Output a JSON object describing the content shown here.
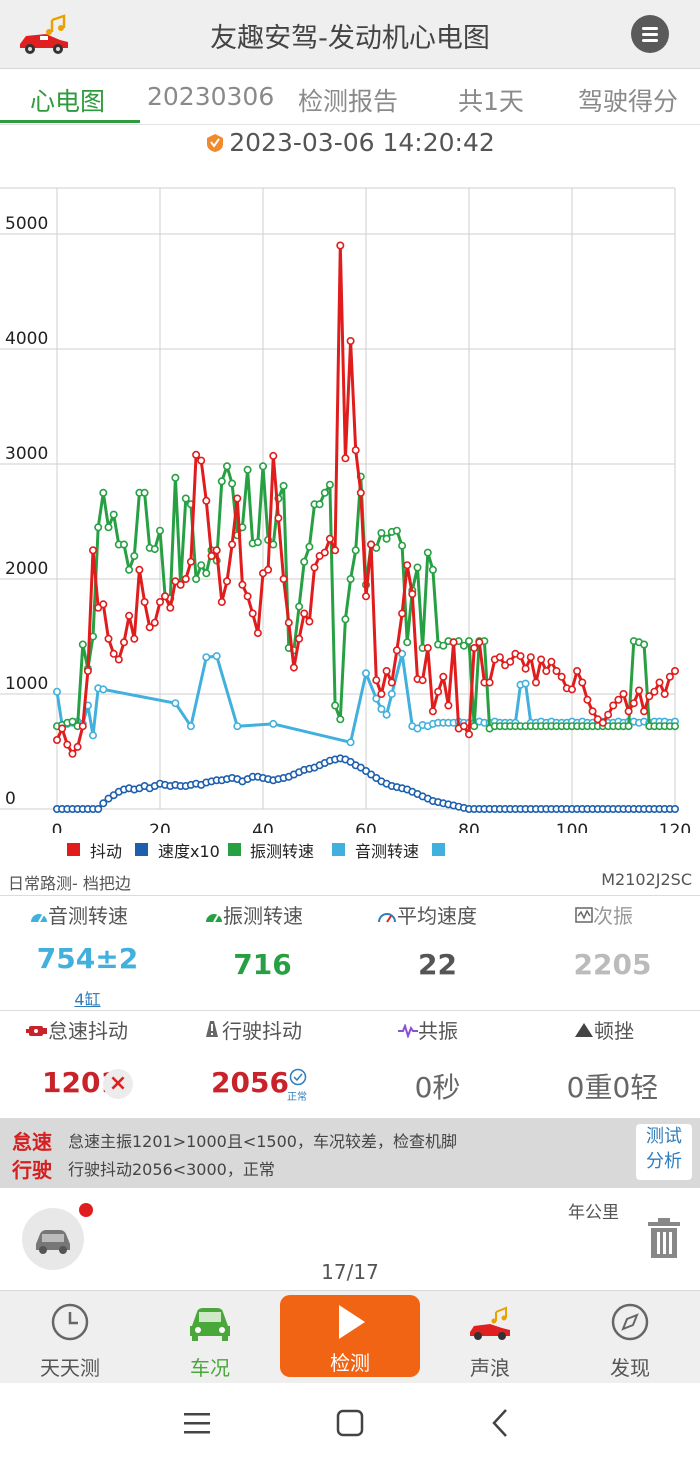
{
  "header": {
    "title": "友趣安驾-发动机心电图"
  },
  "tabs": [
    {
      "label": "心电图",
      "active": true
    },
    {
      "label": "20230306"
    },
    {
      "label": "检测报告"
    },
    {
      "label": "共1天"
    },
    {
      "label": "驾驶得分"
    }
  ],
  "datetime": "2023-03-06 14:20:42",
  "chart_data": {
    "type": "line",
    "x_ticks": [
      "0",
      "20",
      "40",
      "60",
      "80",
      "100",
      "120"
    ],
    "y_ticks": [
      "0",
      "1000",
      "2000",
      "3000",
      "4000",
      "5000"
    ],
    "xlim": [
      0,
      120
    ],
    "ylim": [
      0,
      5400
    ],
    "grid": true,
    "legend_position": "bottom-left",
    "legend": [
      "抖动",
      "速度x10",
      "振测转速",
      "音测转速",
      ""
    ],
    "series": [
      {
        "name": "抖动",
        "color": "#e01c1c",
        "x": [
          0,
          1,
          2,
          3,
          4,
          5,
          6,
          7,
          8,
          9,
          10,
          11,
          12,
          13,
          14,
          15,
          16,
          17,
          18,
          19,
          20,
          21,
          22,
          23,
          24,
          25,
          26,
          27,
          28,
          29,
          30,
          31,
          32,
          33,
          34,
          35,
          36,
          37,
          38,
          39,
          40,
          41,
          42,
          43,
          44,
          45,
          46,
          47,
          48,
          49,
          50,
          51,
          52,
          53,
          54,
          55,
          56,
          57,
          58,
          59,
          60,
          61,
          62,
          63,
          64,
          65,
          66,
          67,
          68,
          69,
          70,
          71,
          72,
          73,
          74,
          75,
          76,
          77,
          78,
          79,
          80,
          81,
          82,
          83,
          84,
          85,
          86,
          87,
          88,
          89,
          90,
          91,
          92,
          93,
          94,
          95,
          96,
          97,
          98,
          99,
          100,
          101,
          102,
          103,
          104,
          105,
          106,
          107,
          108,
          109,
          110,
          111,
          112,
          113,
          114,
          115,
          116,
          117,
          118,
          119,
          120
        ],
        "values": [
          600,
          700,
          560,
          480,
          540,
          720,
          1200,
          2250,
          1750,
          1780,
          1480,
          1350,
          1300,
          1450,
          1680,
          1480,
          2080,
          1800,
          1580,
          1620,
          1800,
          1850,
          1750,
          1980,
          1950,
          2000,
          2150,
          3080,
          3030,
          2680,
          2200,
          2250,
          1800,
          1980,
          2300,
          2700,
          1950,
          1850,
          1700,
          1530,
          2050,
          2080,
          3070,
          2530,
          2000,
          1620,
          1230,
          1480,
          1700,
          1630,
          2100,
          2200,
          2230,
          2350,
          2250,
          4900,
          3050,
          4070,
          3120,
          2750,
          1850,
          2300,
          1120,
          1000,
          1200,
          1100,
          1380,
          1700,
          2120,
          1870,
          1130,
          1120,
          1400,
          850,
          1020,
          1150,
          900,
          1450,
          700,
          720,
          650,
          1400,
          1450,
          1100,
          1100,
          1300,
          1320,
          1250,
          1280,
          1350,
          1330,
          1220,
          1320,
          1100,
          1300,
          1200,
          1280,
          1200,
          1150,
          1050,
          1040,
          1200,
          1100,
          950,
          850,
          780,
          750,
          820,
          900,
          950,
          1000,
          850,
          920,
          1030,
          850,
          980,
          1020,
          1100,
          1000,
          1150,
          1200
        ]
      },
      {
        "name": "速度x10",
        "color": "#1c5fae",
        "x": [
          0,
          1,
          2,
          3,
          4,
          5,
          6,
          7,
          8,
          9,
          10,
          11,
          12,
          13,
          14,
          15,
          16,
          17,
          18,
          19,
          20,
          21,
          22,
          23,
          24,
          25,
          26,
          27,
          28,
          29,
          30,
          31,
          32,
          33,
          34,
          35,
          36,
          37,
          38,
          39,
          40,
          41,
          42,
          43,
          44,
          45,
          46,
          47,
          48,
          49,
          50,
          51,
          52,
          53,
          54,
          55,
          56,
          57,
          58,
          59,
          60,
          61,
          62,
          63,
          64,
          65,
          66,
          67,
          68,
          69,
          70,
          71,
          72,
          73,
          74,
          75,
          76,
          77,
          78,
          79,
          80,
          81,
          82,
          83,
          84,
          85,
          86,
          87,
          88,
          89,
          90,
          91,
          92,
          93,
          94,
          95,
          96,
          97,
          98,
          99,
          100,
          101,
          102,
          103,
          104,
          105,
          106,
          107,
          108,
          109,
          110,
          111,
          112,
          113,
          114,
          115,
          116,
          117,
          118,
          119,
          120
        ],
        "values": [
          0,
          0,
          0,
          0,
          0,
          0,
          0,
          0,
          0,
          50,
          90,
          120,
          150,
          170,
          180,
          170,
          180,
          200,
          180,
          200,
          220,
          210,
          200,
          210,
          200,
          200,
          210,
          220,
          210,
          230,
          240,
          250,
          250,
          260,
          270,
          260,
          240,
          260,
          280,
          280,
          270,
          260,
          250,
          260,
          270,
          280,
          300,
          320,
          340,
          350,
          360,
          380,
          400,
          420,
          430,
          440,
          430,
          410,
          380,
          360,
          330,
          300,
          270,
          240,
          220,
          200,
          190,
          180,
          170,
          150,
          130,
          110,
          90,
          70,
          60,
          50,
          40,
          30,
          20,
          10,
          0,
          0,
          0,
          0,
          0,
          0,
          0,
          0,
          0,
          0,
          0,
          0,
          0,
          0,
          0,
          0,
          0,
          0,
          0,
          0,
          0,
          0,
          0,
          0,
          0,
          0,
          0,
          0,
          0,
          0,
          0,
          0,
          0,
          0,
          0,
          0,
          0,
          0,
          0,
          0,
          0
        ]
      },
      {
        "name": "振测转速",
        "color": "#27a043",
        "x": [
          0,
          1,
          2,
          3,
          4,
          5,
          6,
          7,
          8,
          9,
          10,
          11,
          12,
          13,
          14,
          15,
          16,
          17,
          18,
          19,
          20,
          21,
          22,
          23,
          24,
          25,
          26,
          27,
          28,
          29,
          30,
          31,
          32,
          33,
          34,
          35,
          36,
          37,
          38,
          39,
          40,
          41,
          42,
          43,
          44,
          45,
          46,
          47,
          48,
          49,
          50,
          51,
          52,
          53,
          54,
          55,
          56,
          57,
          58,
          59,
          60,
          61,
          62,
          63,
          64,
          65,
          66,
          67,
          68,
          69,
          70,
          71,
          72,
          73,
          74,
          75,
          76,
          77,
          78,
          79,
          80,
          81,
          82,
          83,
          84,
          85,
          86,
          87,
          88,
          89,
          90,
          91,
          92,
          93,
          94,
          95,
          96,
          97,
          98,
          99,
          100,
          101,
          102,
          103,
          104,
          105,
          106,
          107,
          108,
          109,
          110,
          111,
          112,
          113,
          114,
          115,
          116,
          117,
          118,
          119,
          120
        ],
        "values": [
          720,
          730,
          750,
          760,
          720,
          1430,
          1220,
          1500,
          2450,
          2750,
          2450,
          2560,
          2300,
          2300,
          2080,
          2200,
          2750,
          2750,
          2270,
          2260,
          2420,
          1850,
          1830,
          2880,
          1950,
          2700,
          2650,
          2000,
          2120,
          2050,
          2250,
          2160,
          2850,
          2980,
          2830,
          2380,
          2450,
          2950,
          2310,
          2320,
          2980,
          2340,
          2300,
          2700,
          2810,
          1400,
          1380,
          1760,
          2150,
          2280,
          2650,
          2650,
          2750,
          2820,
          900,
          780,
          1650,
          2000,
          2250,
          2890,
          1950,
          2300,
          2270,
          2400,
          2350,
          2410,
          2420,
          2290,
          1450,
          1900,
          2100,
          1400,
          2230,
          2080,
          1430,
          1420,
          1460,
          1450,
          1460,
          1420,
          1460,
          720,
          1460,
          1460,
          700,
          720,
          720,
          720,
          720,
          720,
          720,
          720,
          720,
          720,
          720,
          720,
          720,
          720,
          720,
          720,
          720,
          720,
          720,
          720,
          720,
          720,
          720,
          720,
          720,
          720,
          720,
          720,
          1460,
          1450,
          1430,
          720,
          720,
          720,
          720,
          720,
          720
        ]
      },
      {
        "name": "音测转速",
        "color": "#42b0dd",
        "x": [
          0,
          1,
          2,
          3,
          4,
          5,
          6,
          7,
          8,
          9,
          23,
          26,
          29,
          31,
          35,
          42,
          57,
          60,
          62,
          63,
          64,
          65,
          67,
          69,
          70,
          71,
          72,
          73,
          74,
          75,
          76,
          77,
          78,
          79,
          80,
          81,
          82,
          83,
          84,
          85,
          86,
          87,
          88,
          89,
          90,
          91,
          92,
          93,
          94,
          95,
          96,
          97,
          98,
          99,
          100,
          101,
          102,
          103,
          104,
          105,
          106,
          107,
          108,
          109,
          110,
          111,
          112,
          113,
          114,
          115,
          116,
          117,
          118,
          119,
          120
        ],
        "values": [
          1020,
          730,
          740,
          750,
          760,
          740,
          900,
          640,
          1050,
          1040,
          920,
          720,
          1320,
          1330,
          720,
          740,
          580,
          1180,
          960,
          870,
          820,
          1000,
          1350,
          720,
          700,
          730,
          720,
          740,
          750,
          750,
          750,
          750,
          760,
          750,
          750,
          750,
          760,
          750,
          750,
          760,
          750,
          750,
          750,
          750,
          1080,
          1090,
          750,
          750,
          760,
          750,
          760,
          750,
          750,
          750,
          760,
          750,
          760,
          750,
          750,
          760,
          760,
          750,
          750,
          760,
          750,
          760,
          760,
          750,
          760,
          750,
          760,
          760,
          760,
          750,
          760
        ]
      }
    ]
  },
  "chart_info": {
    "road_mode": "日常路测- 档把边",
    "model": "M2102J2SC"
  },
  "stats": {
    "row1": [
      {
        "label": "音测转速",
        "value": "754±2",
        "sub": "4缸",
        "icon": "gauge-icon",
        "color": "#42b0dd"
      },
      {
        "label": "振测转速",
        "value": "716",
        "icon": "gauge-icon",
        "color": "#27a043"
      },
      {
        "label": "平均速度",
        "value": "22",
        "icon": "speedometer-icon",
        "color": "#555555"
      },
      {
        "label": "次振",
        "value": "2205",
        "icon": "waveform-icon",
        "color": "#bbbbbb"
      }
    ],
    "row2": [
      {
        "label": "怠速抖动",
        "value": "1201",
        "icon": "engine-icon",
        "color": "#c8232a",
        "badge": "×"
      },
      {
        "label": "行驶抖动",
        "value": "2056",
        "icon": "road-warning-icon",
        "color": "#c8232a",
        "badge_text": "正常"
      },
      {
        "label": "共振",
        "value": "0秒",
        "icon": "pulse-icon",
        "color": "#666666"
      },
      {
        "label": "顿挫",
        "value": "0重0轻",
        "icon": "triangle-icon",
        "color": "#666666"
      }
    ]
  },
  "analysis": {
    "idle_tag": "怠速",
    "idle_text": "怠速主振1201>1000且<1500，车况较差，检查机脚",
    "drive_tag": "行驶",
    "drive_text": "行驶抖动2056<3000，正常",
    "test_button": [
      "测试",
      "分析"
    ]
  },
  "footer": {
    "year_km": "年公里",
    "page": "17/17"
  },
  "nav": [
    {
      "label": "天天测",
      "icon": "clock-icon"
    },
    {
      "label": "车况",
      "icon": "car-icon",
      "active": true
    },
    {
      "label": "检测",
      "icon": "play-icon"
    },
    {
      "label": "声浪",
      "icon": "race-car-icon"
    },
    {
      "label": "发现",
      "icon": "compass-icon"
    }
  ]
}
